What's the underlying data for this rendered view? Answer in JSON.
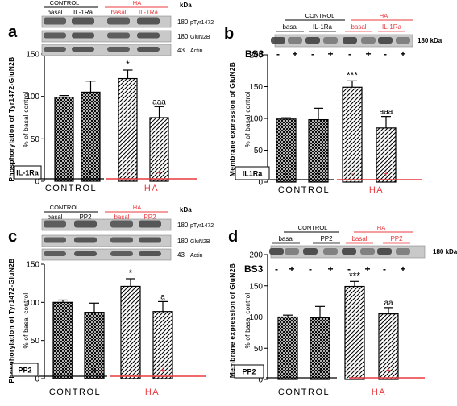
{
  "colors": {
    "red": "#e8383d",
    "black": "#000000",
    "band_bg": "#c9c9c9",
    "band": "#3a3a3a"
  },
  "kda_label": "kDa",
  "chart_data": [
    {
      "panel": "a",
      "type": "bar",
      "ylabel": "Phosphorylation of Tyr1472-GluN2B",
      "ylabel2": "% of basal control",
      "ylim": [
        0,
        150
      ],
      "yticks": [
        "0",
        "50",
        "100",
        "150"
      ],
      "treatment_label": "IL-1Ra",
      "signs": [
        "-",
        "+",
        "-",
        "+"
      ],
      "group_labels": [
        "CONTROL",
        "HA"
      ],
      "values": [
        99,
        105,
        121,
        75
      ],
      "errors": [
        2,
        13,
        10,
        13
      ],
      "hatch": [
        "cross",
        "cross",
        "diag",
        "diag"
      ],
      "annotations": [
        "",
        "",
        "*",
        "aaa"
      ],
      "blot": {
        "groups": [
          "CONTROL",
          "HA"
        ],
        "lanes": [
          "basal",
          "IL-1Ra",
          "basal",
          "IL-1Ra"
        ],
        "rows": [
          {
            "kda": "180",
            "name": "pTyr1472"
          },
          {
            "kda": "180",
            "name": "GluN2B"
          },
          {
            "kda": "43",
            "name": "Actin"
          }
        ]
      }
    },
    {
      "panel": "b",
      "type": "bar",
      "ylabel": "Membrane expression of GluN2B",
      "ylabel2": "% of basal control",
      "ylim": [
        0,
        200
      ],
      "yticks": [
        "0",
        "50",
        "100",
        "150",
        "200"
      ],
      "treatment_label": "IL1Ra",
      "signs": [
        "-",
        "+",
        "-",
        "+"
      ],
      "group_labels": [
        "CONTROL",
        "HA"
      ],
      "values": [
        99,
        98,
        149,
        85
      ],
      "errors": [
        2,
        18,
        10,
        18
      ],
      "hatch": [
        "cross",
        "cross",
        "diag",
        "diag"
      ],
      "annotations": [
        "",
        "",
        "***",
        "aaa"
      ],
      "blot": {
        "groups": [
          "CONTROL",
          "HA"
        ],
        "lanes": [
          "basal",
          "IL-1Ra",
          "basal",
          "IL-1Ra"
        ],
        "bs3": {
          "label": "BS3",
          "signs": [
            "-",
            "+",
            "-",
            "+",
            "-",
            "+",
            "-",
            "+"
          ]
        },
        "kda": "180 kDa"
      }
    },
    {
      "panel": "c",
      "type": "bar",
      "ylabel": "Phosphorylation of Tyr1472-GluN2B",
      "ylabel2": "% of basal control",
      "ylim": [
        0,
        150
      ],
      "yticks": [
        "0",
        "50",
        "100",
        "150"
      ],
      "treatment_label": "PP2",
      "signs": [
        "-",
        "+",
        "-",
        "+"
      ],
      "group_labels": [
        "CONTROL",
        "HA"
      ],
      "values": [
        100,
        87,
        121,
        88
      ],
      "errors": [
        3,
        12,
        10,
        13
      ],
      "hatch": [
        "cross",
        "cross",
        "diag",
        "diag"
      ],
      "annotations": [
        "",
        "",
        "*",
        "a"
      ],
      "blot": {
        "groups": [
          "CONTROL",
          "HA"
        ],
        "lanes": [
          "basal",
          "PP2",
          "basal",
          "PP2"
        ],
        "rows": [
          {
            "kda": "180",
            "name": "pTyr1472"
          },
          {
            "kda": "180",
            "name": "GluN2B"
          },
          {
            "kda": "43",
            "name": "Actin"
          }
        ]
      }
    },
    {
      "panel": "d",
      "type": "bar",
      "ylabel": "Membrane expression of GluN2B",
      "ylabel2": "% of basal control",
      "ylim": [
        0,
        200
      ],
      "yticks": [
        "0",
        "50",
        "100",
        "150",
        "200"
      ],
      "treatment_label": "PP2",
      "signs": [
        "-",
        "+",
        "-",
        "+"
      ],
      "group_labels": [
        "CONTROL",
        "HA"
      ],
      "values": [
        100,
        99,
        149,
        105
      ],
      "errors": [
        3,
        18,
        8,
        10
      ],
      "hatch": [
        "cross",
        "cross",
        "diag",
        "diag"
      ],
      "annotations": [
        "",
        "",
        "***",
        "aa"
      ],
      "blot": {
        "groups": [
          "CONTROL",
          "HA"
        ],
        "lanes": [
          "basal",
          "PP2",
          "basal",
          "PP2"
        ],
        "bs3": {
          "label": "BS3",
          "signs": [
            "-",
            "+",
            "-",
            "+",
            "-",
            "+",
            "-",
            "+"
          ]
        },
        "kda": "180 kDa"
      }
    }
  ]
}
